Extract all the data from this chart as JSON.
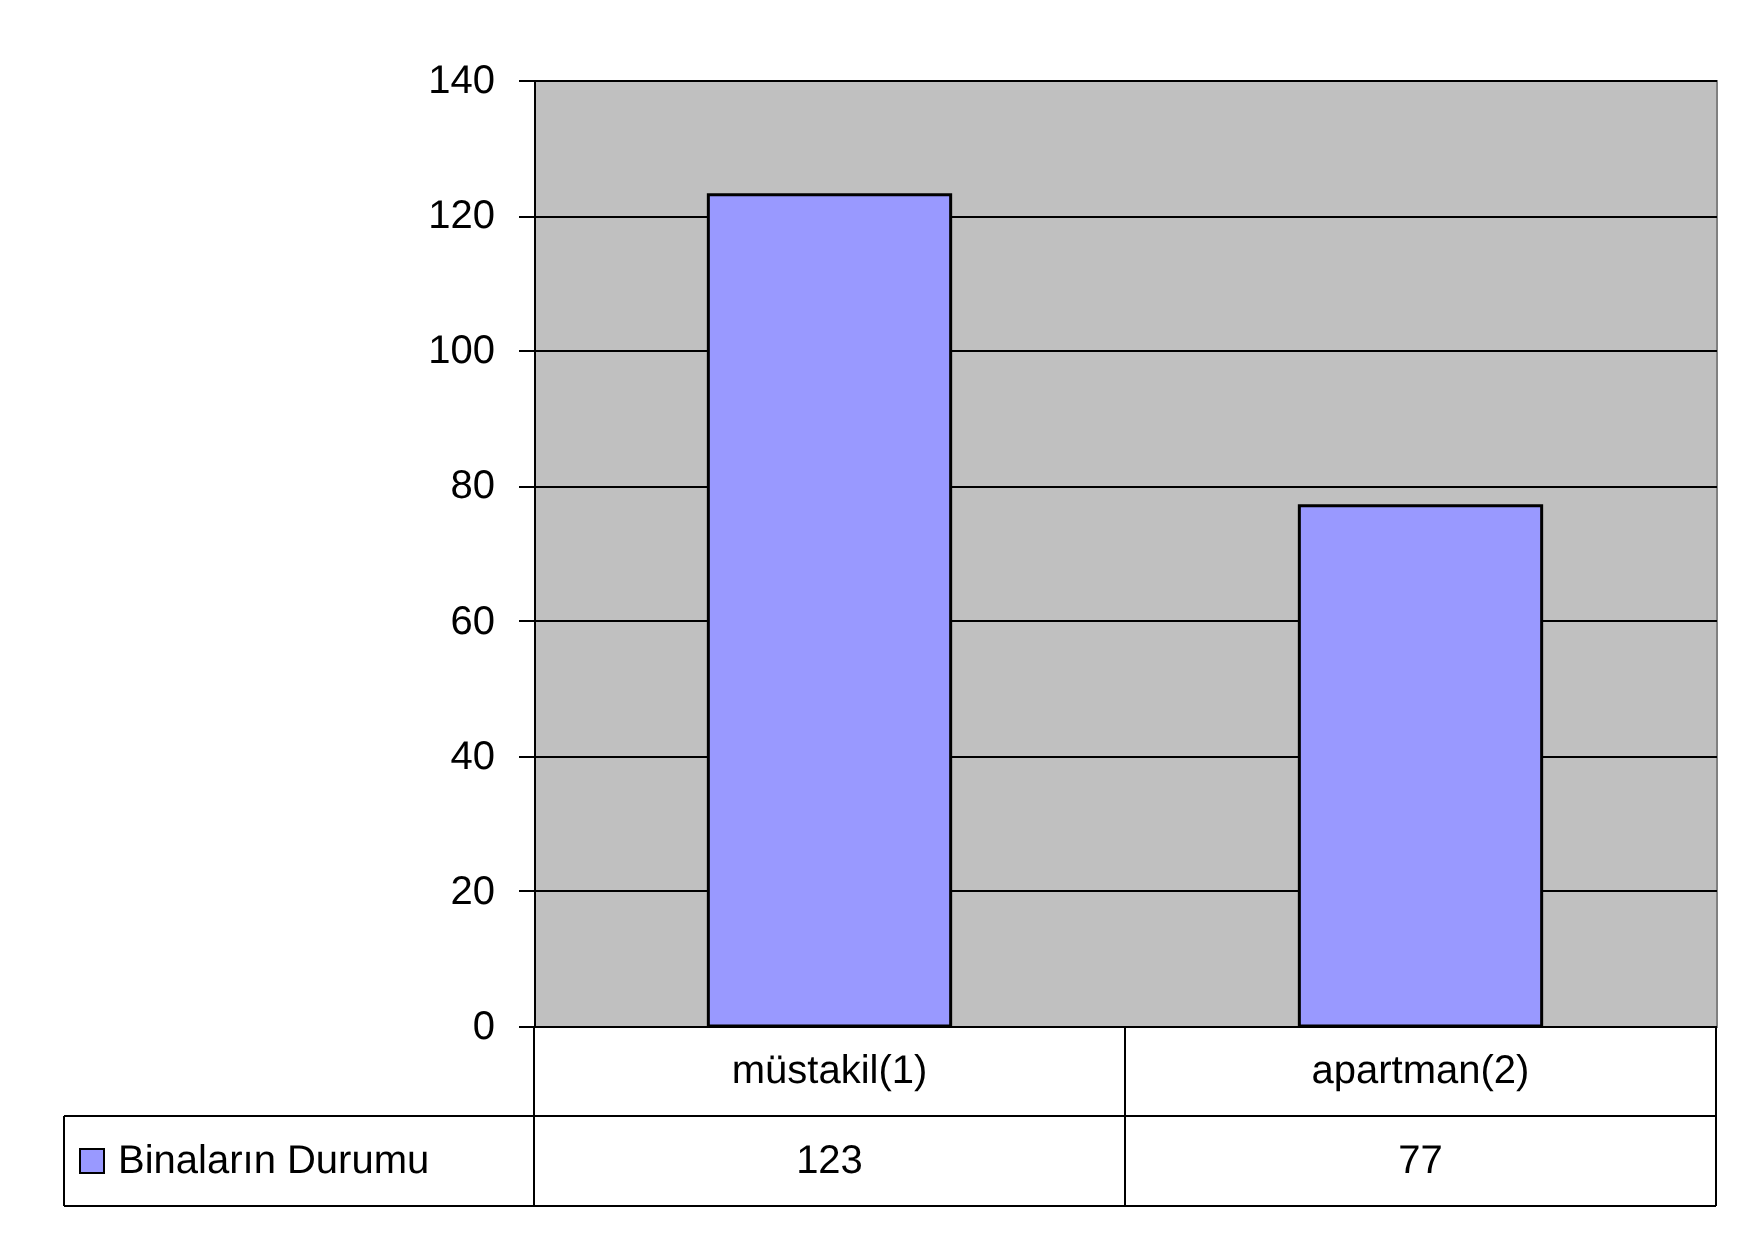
{
  "chart_data": {
    "type": "bar",
    "categories": [
      "müstakil(1)",
      "apartman(2)"
    ],
    "series": [
      {
        "name": "Binaların Durumu",
        "color": "#9999ff",
        "values": [
          123,
          77
        ]
      }
    ],
    "ylim": [
      0,
      140
    ],
    "yticks": [
      0,
      20,
      40,
      60,
      80,
      100,
      120,
      140
    ],
    "grid": "y",
    "legend": "bottom left",
    "data_labels": true
  }
}
